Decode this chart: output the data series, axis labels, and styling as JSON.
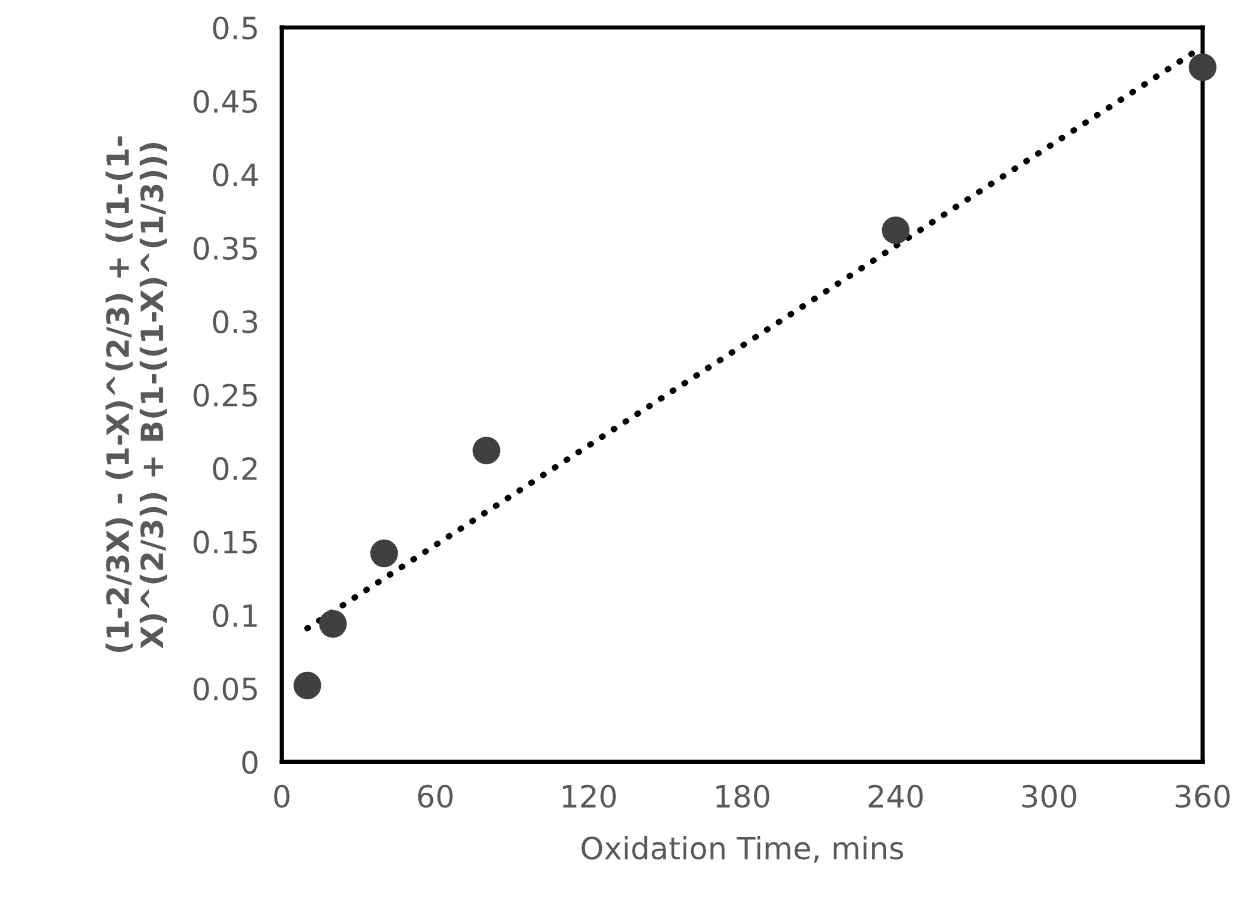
{
  "chart_data": {
    "type": "scatter",
    "xlabel": "Oxidation Time, mins",
    "ylabel": "(1-2/3X) - (1-X)^(2/3) + ((1-(1-\nX)^(2/3)) + B(1-((1-X)^(1/3)))",
    "series": [
      {
        "color": "#404040",
        "marker": "circle",
        "x": [
          10,
          20,
          40,
          80,
          240,
          360
        ],
        "values": [
          0.052,
          0.094,
          0.142,
          0.212,
          0.362,
          0.473
        ]
      },
      {
        "type": "line",
        "color": "#000000",
        "line_style": "dotted",
        "marker": "none",
        "x": [
          10,
          360
        ],
        "values": [
          0.091,
          0.487
        ]
      }
    ],
    "xlim": [
      0,
      360
    ],
    "xticks": [
      0,
      60,
      120,
      180,
      240,
      300,
      360
    ],
    "ylim": [
      0,
      0.5
    ],
    "yticks": [
      0,
      0.05,
      0.1,
      0.15,
      0.2,
      0.25,
      0.3,
      0.35,
      0.4,
      0.45,
      0.5
    ],
    "grid": false,
    "legend": false
  }
}
